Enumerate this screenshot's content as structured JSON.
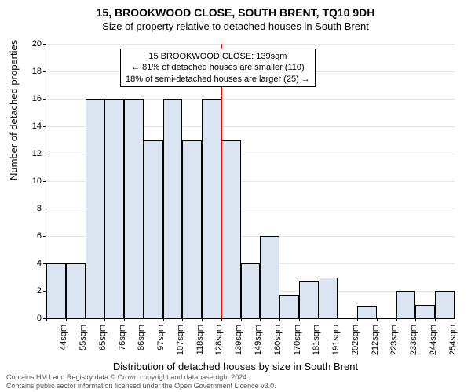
{
  "title": "15, BROOKWOOD CLOSE, SOUTH BRENT, TQ10 9DH",
  "subtitle": "Size of property relative to detached houses in South Brent",
  "y_axis_label": "Number of detached properties",
  "x_axis_label": "Distribution of detached houses by size in South Brent",
  "chart": {
    "type": "histogram",
    "ylim": [
      0,
      20
    ],
    "ytick_step": 2,
    "bar_fill": "#dbe5f1",
    "bar_stroke": "#000000",
    "refline_color": "#ff0000",
    "refline_x_value": 139,
    "background_color": "#ffffff",
    "grid_color": "#e6e6e6",
    "x_labels": [
      "44sqm",
      "55sqm",
      "65sqm",
      "76sqm",
      "86sqm",
      "97sqm",
      "107sqm",
      "118sqm",
      "128sqm",
      "139sqm",
      "149sqm",
      "160sqm",
      "170sqm",
      "181sqm",
      "191sqm",
      "202sqm",
      "212sqm",
      "223sqm",
      "233sqm",
      "244sqm",
      "254sqm"
    ],
    "values": [
      4,
      4,
      16,
      16,
      16,
      13,
      16,
      13,
      16,
      13,
      4,
      6,
      1.7,
      2.7,
      3,
      0,
      0.9,
      0,
      2,
      1,
      2
    ]
  },
  "annotation": {
    "line1": "15 BROOKWOOD CLOSE: 139sqm",
    "line2": "← 81% of detached houses are smaller (110)",
    "line3": "18% of semi-detached houses are larger (25) →"
  },
  "footer": {
    "line1": "Contains HM Land Registry data © Crown copyright and database right 2024.",
    "line2": "Contains public sector information licensed under the Open Government Licence v3.0."
  }
}
